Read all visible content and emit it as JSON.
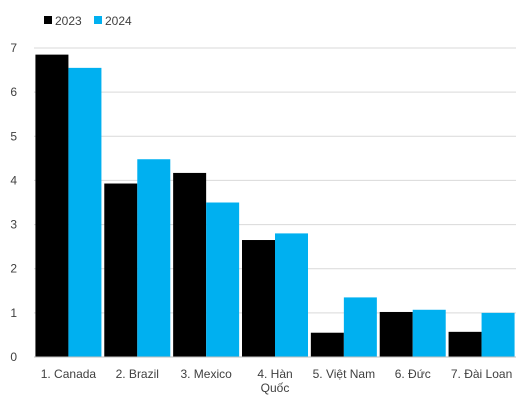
{
  "chart_data": {
    "type": "bar",
    "categories": [
      [
        "1. Canada"
      ],
      [
        "2. Brazil"
      ],
      [
        "3. Mexico"
      ],
      [
        "4. Hàn",
        "Quốc"
      ],
      [
        "5. Việt Nam"
      ],
      [
        "6. Đức"
      ],
      [
        "7. Đài Loan"
      ]
    ],
    "series": [
      {
        "name": "2023",
        "color": "#000000",
        "values": [
          6.85,
          3.93,
          4.17,
          2.65,
          0.55,
          1.02,
          0.57
        ]
      },
      {
        "name": "2024",
        "color": "#00b0f0",
        "values": [
          6.55,
          4.48,
          3.5,
          2.8,
          1.35,
          1.07,
          1.0
        ]
      }
    ],
    "ylim": [
      0,
      7
    ],
    "yticks": [
      "0",
      "1",
      "2",
      "3",
      "4",
      "5",
      "6",
      "7"
    ],
    "grid": true,
    "legend_position": "top-left",
    "title": "",
    "xlabel": "",
    "ylabel": ""
  }
}
